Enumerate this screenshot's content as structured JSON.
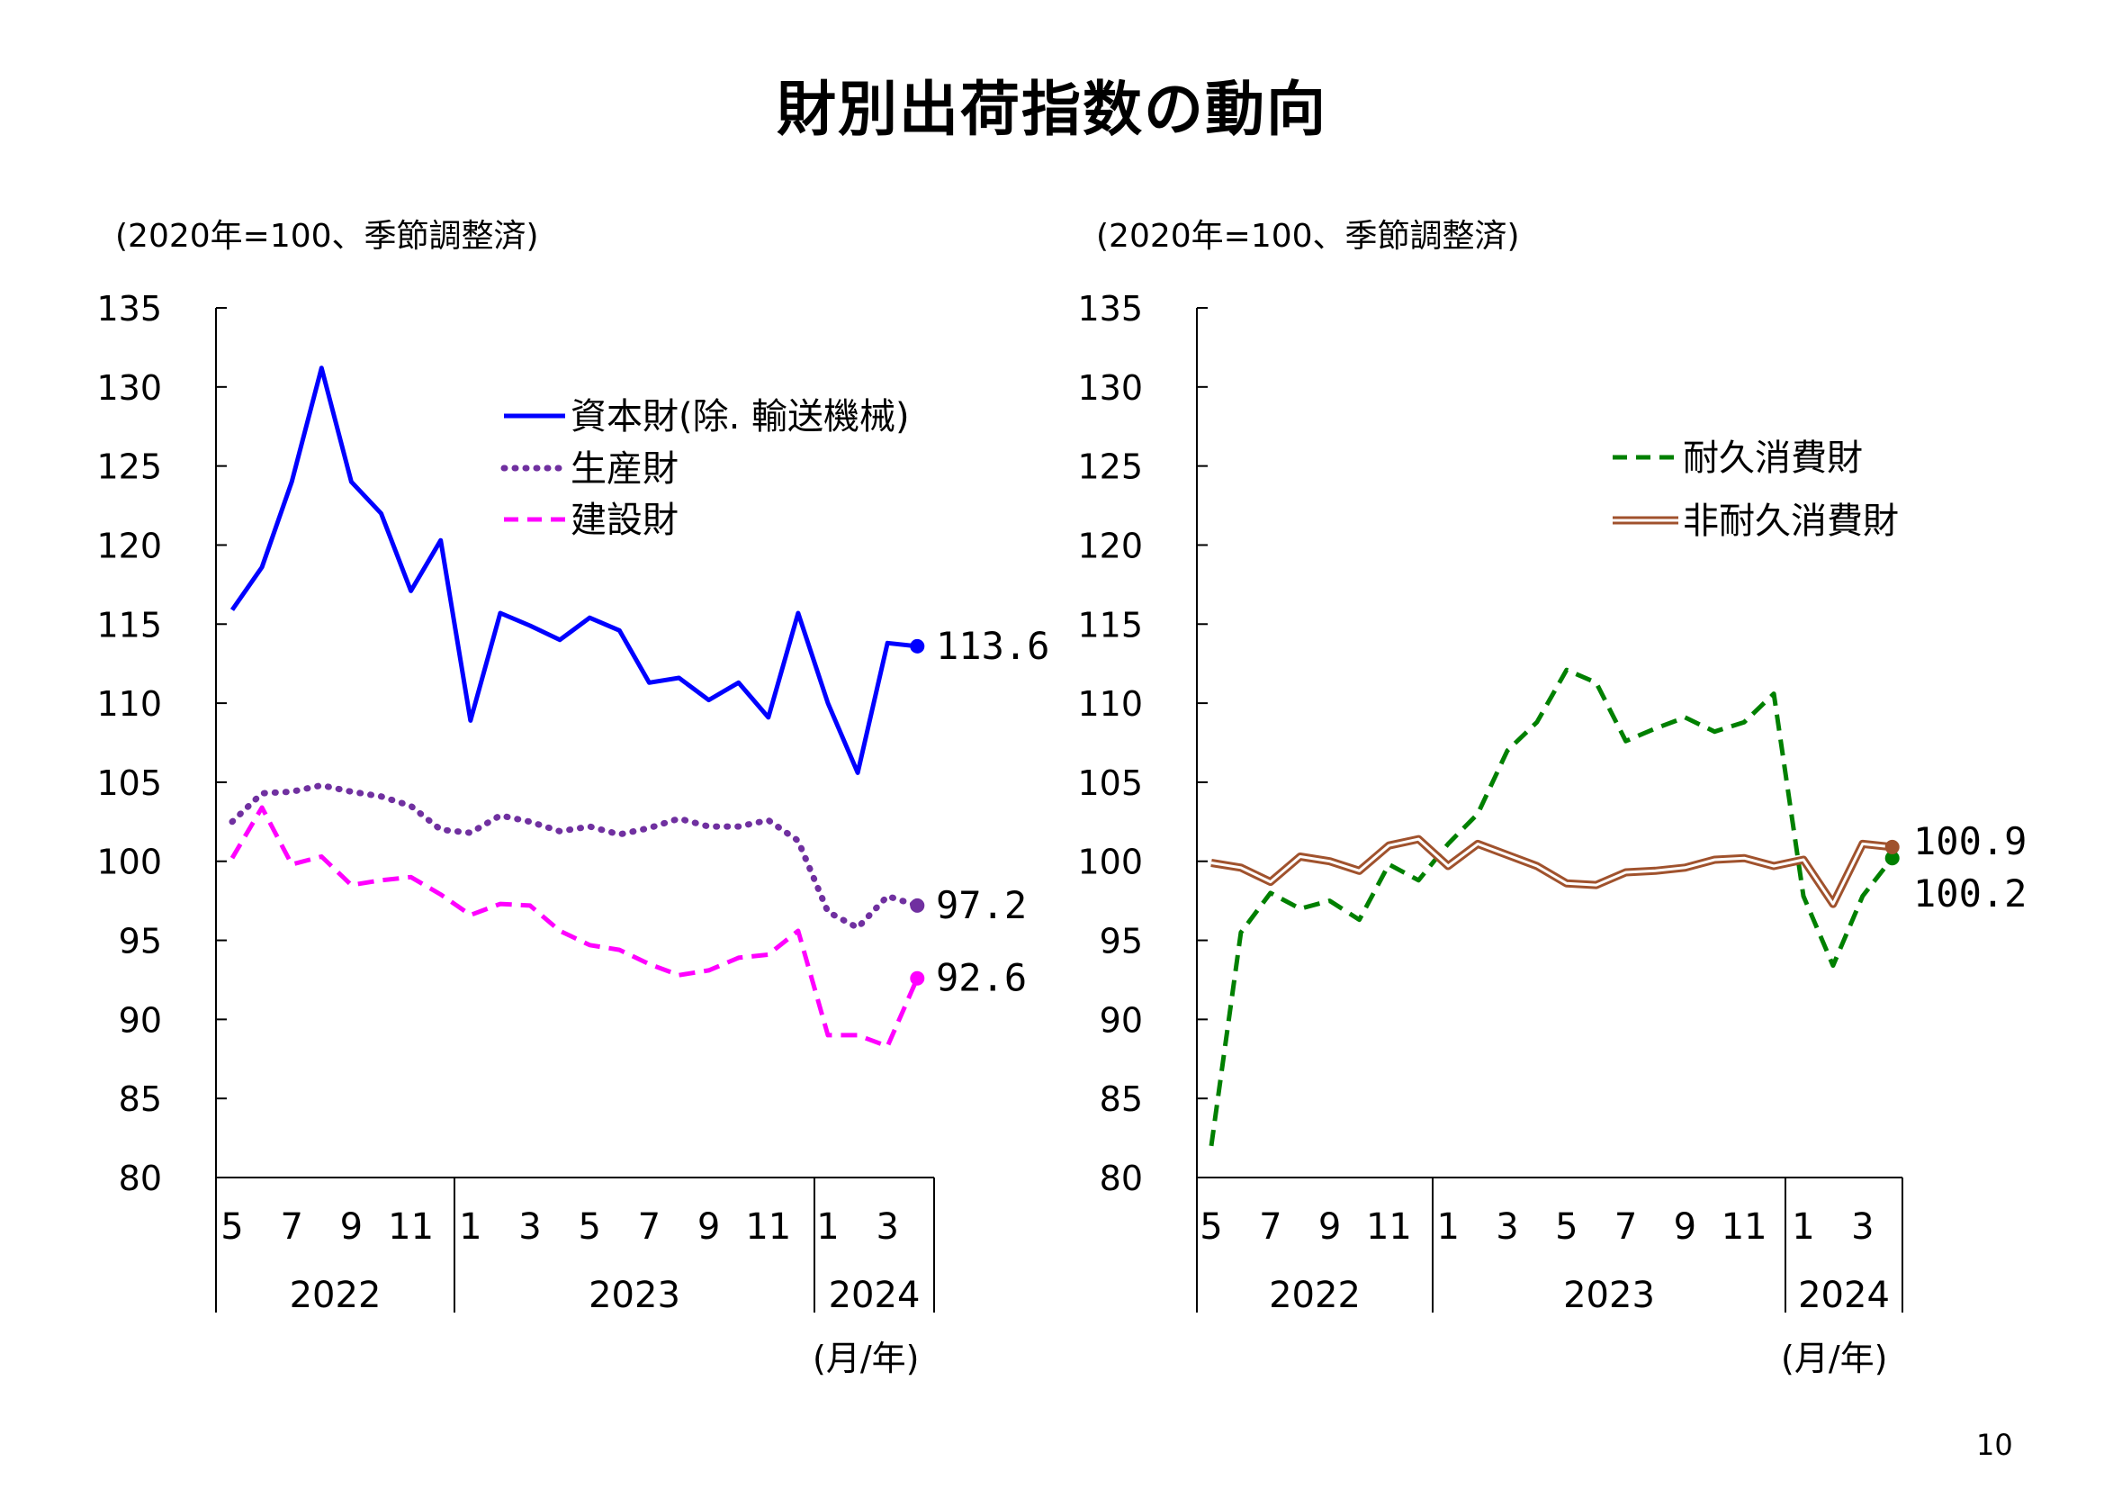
{
  "title": "財別出荷指数の動向",
  "page_number": "10",
  "chart_data": [
    {
      "type": "line",
      "unit_label": "(2020年=100、季節調整済)",
      "x_unit_label": "(月/年)",
      "ylim": [
        80,
        135
      ],
      "yticks": [
        80,
        85,
        90,
        95,
        100,
        105,
        110,
        115,
        120,
        125,
        130,
        135
      ],
      "x": [
        "2022-05",
        "2022-06",
        "2022-07",
        "2022-08",
        "2022-09",
        "2022-10",
        "2022-11",
        "2022-12",
        "2023-01",
        "2023-02",
        "2023-03",
        "2023-04",
        "2023-05",
        "2023-06",
        "2023-07",
        "2023-08",
        "2023-09",
        "2023-10",
        "2023-11",
        "2023-12",
        "2024-01",
        "2024-02",
        "2024-03",
        "2024-04"
      ],
      "month_ticks": [
        "5",
        "7",
        "9",
        "11",
        "1",
        "3",
        "5",
        "7",
        "9",
        "11",
        "1",
        "3"
      ],
      "year_labels": [
        "2022",
        "2023",
        "2024"
      ],
      "legend_position": "top-right",
      "series": [
        {
          "name": "資本財(除. 輸送機械)",
          "color": "#0000ff",
          "style": "solid",
          "values": [
            115.9,
            118.6,
            124.0,
            131.2,
            124.0,
            122.0,
            117.1,
            120.3,
            108.9,
            115.7,
            114.9,
            114.0,
            115.4,
            114.6,
            111.3,
            111.6,
            110.2,
            111.3,
            109.1,
            115.7,
            110.0,
            105.6,
            113.8,
            113.6
          ],
          "end_label": "113.6"
        },
        {
          "name": "生産財",
          "color": "#7030a0",
          "style": "dotted",
          "values": [
            102.5,
            104.3,
            104.4,
            104.8,
            104.4,
            104.1,
            103.5,
            102.0,
            101.8,
            102.9,
            102.5,
            101.9,
            102.2,
            101.7,
            102.1,
            102.7,
            102.2,
            102.2,
            102.6,
            101.3,
            96.8,
            95.8,
            97.8,
            97.2
          ],
          "end_label": "97.2"
        },
        {
          "name": "建設財",
          "color": "#ff00ff",
          "style": "dashed",
          "values": [
            100.2,
            103.4,
            99.8,
            100.3,
            98.5,
            98.8,
            99.0,
            97.9,
            96.6,
            97.3,
            97.2,
            95.6,
            94.7,
            94.4,
            93.5,
            92.8,
            93.1,
            93.9,
            94.1,
            95.6,
            89.0,
            89.0,
            88.3,
            92.6
          ],
          "end_label": "92.6"
        }
      ]
    },
    {
      "type": "line",
      "unit_label": "(2020年=100、季節調整済)",
      "x_unit_label": "(月/年)",
      "ylim": [
        80,
        135
      ],
      "yticks": [
        80,
        85,
        90,
        95,
        100,
        105,
        110,
        115,
        120,
        125,
        130,
        135
      ],
      "x": [
        "2022-05",
        "2022-06",
        "2022-07",
        "2022-08",
        "2022-09",
        "2022-10",
        "2022-11",
        "2022-12",
        "2023-01",
        "2023-02",
        "2023-03",
        "2023-04",
        "2023-05",
        "2023-06",
        "2023-07",
        "2023-08",
        "2023-09",
        "2023-10",
        "2023-11",
        "2023-12",
        "2024-01",
        "2024-02",
        "2024-03",
        "2024-04"
      ],
      "month_ticks": [
        "5",
        "7",
        "9",
        "11",
        "1",
        "3",
        "5",
        "7",
        "9",
        "11",
        "1",
        "3"
      ],
      "year_labels": [
        "2022",
        "2023",
        "2024"
      ],
      "legend_position": "top-right",
      "series": [
        {
          "name": "耐久消費財",
          "color": "#008000",
          "style": "dashed",
          "values": [
            82.0,
            95.5,
            98.0,
            97.0,
            97.5,
            96.3,
            99.8,
            98.8,
            101.1,
            103.0,
            107.0,
            108.8,
            112.1,
            111.3,
            107.6,
            108.4,
            109.1,
            108.2,
            108.8,
            110.6,
            97.8,
            93.4,
            97.8,
            100.2
          ],
          "end_label": "100.2"
        },
        {
          "name": "非耐久消費財",
          "color": "#a0522d",
          "style": "double",
          "values": [
            99.9,
            99.6,
            98.7,
            100.3,
            100.0,
            99.4,
            101.0,
            101.4,
            99.7,
            101.1,
            100.4,
            99.7,
            98.6,
            98.5,
            99.3,
            99.4,
            99.6,
            100.1,
            100.2,
            99.7,
            100.1,
            97.3,
            101.1,
            100.9
          ],
          "end_label": "100.9"
        }
      ]
    }
  ]
}
